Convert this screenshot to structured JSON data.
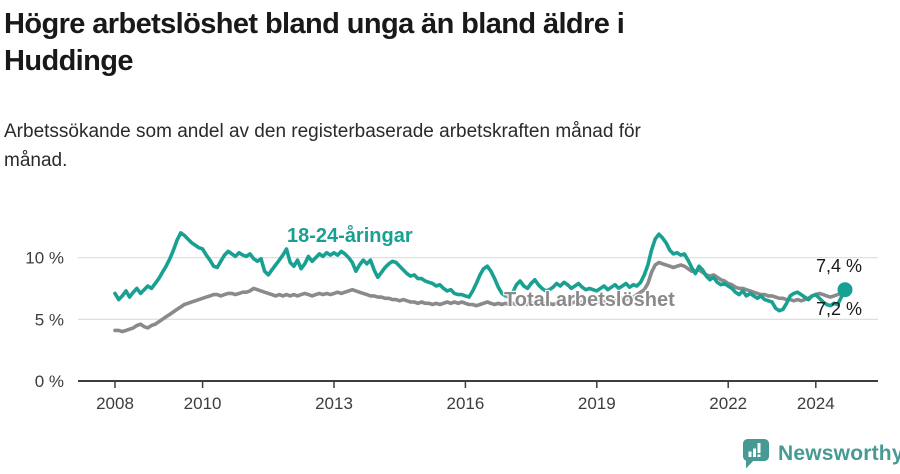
{
  "header": {
    "title": "Högre arbetslöshet bland unga än bland äldre i Huddinge",
    "title_line1": "Högre arbetslöshet bland unga än bland äldre i",
    "title_line2": "Huddinge",
    "subtitle": "Arbetssökande som andel av den registerbaserade arbetskraften månad för månad.",
    "subtitle_line1": "Arbetssökande som andel av den registerbaserade arbetskraften månad för",
    "subtitle_line2": "månad."
  },
  "chart_data": {
    "type": "line",
    "title": "Högre arbetslöshet bland unga än bland äldre i Huddinge",
    "subtitle": "Arbetssökande som andel av den registerbaserade arbetskraften månad för månad.",
    "x_start_year": 2008,
    "x_end_label": "2024",
    "points_frequency": "monthly",
    "x_ticks": [
      2008,
      2010,
      2013,
      2016,
      2019,
      2022,
      2024
    ],
    "y_ticks": [
      {
        "value": 0,
        "label": "0 %"
      },
      {
        "value": 5,
        "label": "5 %"
      },
      {
        "value": 10,
        "label": "10 %"
      }
    ],
    "ylim": [
      0,
      12.8
    ],
    "grid": "horizontal-only",
    "legend_position": "inline-labels",
    "colors": {
      "teal": "#18a192",
      "gray": "#8a8a8a",
      "axis": "#3d3d3d",
      "grid": "#e0e0e0",
      "text_dark": "#1a1a1a",
      "logo": "#479a94"
    },
    "end_labels": [
      "7,4 %",
      "7,2 %"
    ],
    "series": [
      {
        "id": "young",
        "name": "18-24-åringar",
        "color": "#18a192",
        "end_value": 7.4,
        "values": [
          7.1,
          6.6,
          6.9,
          7.3,
          6.8,
          7.2,
          7.5,
          7.1,
          7.4,
          7.7,
          7.5,
          7.9,
          8.3,
          8.8,
          9.3,
          9.9,
          10.6,
          11.4,
          12.0,
          11.8,
          11.5,
          11.2,
          11.0,
          10.8,
          10.7,
          10.2,
          9.8,
          9.3,
          9.2,
          9.7,
          10.2,
          10.5,
          10.3,
          10.1,
          10.4,
          10.2,
          10.1,
          10.3,
          9.9,
          9.7,
          9.9,
          8.9,
          8.6,
          9.0,
          9.4,
          9.8,
          10.2,
          10.7,
          9.6,
          9.3,
          9.8,
          9.1,
          9.5,
          10.1,
          9.7,
          10.0,
          10.3,
          10.1,
          10.4,
          10.2,
          10.4,
          10.2,
          10.5,
          10.3,
          10.0,
          9.6,
          8.9,
          9.4,
          9.8,
          9.5,
          9.8,
          9.0,
          8.4,
          8.8,
          9.2,
          9.5,
          9.7,
          9.6,
          9.3,
          9.0,
          8.7,
          8.5,
          8.6,
          8.3,
          8.3,
          8.1,
          8.0,
          7.9,
          7.7,
          7.8,
          7.5,
          7.3,
          7.4,
          7.1,
          7.0,
          7.0,
          6.9,
          6.8,
          7.3,
          7.9,
          8.6,
          9.1,
          9.3,
          8.9,
          8.3,
          7.6,
          7.1,
          6.9,
          6.8,
          7.2,
          7.8,
          8.1,
          7.7,
          7.5,
          7.9,
          8.2,
          7.8,
          7.5,
          7.3,
          7.4,
          7.6,
          7.9,
          7.7,
          8.0,
          7.8,
          7.5,
          7.7,
          7.9,
          7.6,
          7.4,
          7.5,
          7.4,
          7.3,
          7.5,
          7.7,
          7.4,
          7.6,
          7.8,
          7.5,
          7.7,
          7.9,
          7.6,
          7.8,
          7.7,
          8.0,
          8.6,
          9.4,
          10.6,
          11.5,
          11.9,
          11.6,
          11.2,
          10.6,
          10.3,
          10.4,
          10.2,
          10.3,
          9.8,
          9.2,
          8.7,
          9.3,
          9.0,
          8.5,
          8.2,
          8.4,
          8.0,
          7.8,
          7.9,
          7.7,
          7.5,
          7.2,
          7.0,
          7.3,
          6.9,
          7.1,
          6.9,
          6.7,
          6.9,
          6.6,
          6.5,
          6.4,
          5.9,
          5.7,
          5.8,
          6.3,
          6.9,
          7.1,
          7.2,
          7.0,
          6.8,
          6.6,
          6.9,
          7.0,
          6.7,
          6.4,
          6.2,
          6.1,
          6.3,
          6.2,
          6.8,
          7.4
        ]
      },
      {
        "id": "total",
        "name": "Total arbetslöshet",
        "color": "#8a8a8a",
        "end_value": 7.2,
        "values": [
          4.1,
          4.1,
          4.0,
          4.1,
          4.2,
          4.3,
          4.5,
          4.6,
          4.4,
          4.3,
          4.5,
          4.6,
          4.8,
          5.0,
          5.2,
          5.4,
          5.6,
          5.8,
          6.0,
          6.2,
          6.3,
          6.4,
          6.5,
          6.6,
          6.7,
          6.8,
          6.9,
          7.0,
          7.0,
          6.9,
          7.0,
          7.1,
          7.1,
          7.0,
          7.1,
          7.2,
          7.2,
          7.3,
          7.5,
          7.4,
          7.3,
          7.2,
          7.1,
          7.0,
          6.9,
          7.0,
          6.9,
          7.0,
          6.9,
          7.0,
          6.9,
          7.0,
          7.1,
          7.0,
          6.9,
          7.0,
          7.1,
          7.0,
          7.1,
          7.0,
          7.1,
          7.2,
          7.1,
          7.2,
          7.3,
          7.4,
          7.3,
          7.2,
          7.1,
          7.0,
          6.9,
          6.9,
          6.8,
          6.8,
          6.7,
          6.7,
          6.6,
          6.6,
          6.5,
          6.6,
          6.5,
          6.4,
          6.4,
          6.3,
          6.4,
          6.3,
          6.3,
          6.2,
          6.3,
          6.2,
          6.3,
          6.4,
          6.3,
          6.4,
          6.3,
          6.4,
          6.3,
          6.2,
          6.2,
          6.1,
          6.2,
          6.3,
          6.4,
          6.3,
          6.2,
          6.3,
          6.2,
          6.3,
          6.2,
          6.3,
          6.2,
          6.2,
          6.3,
          6.2,
          6.3,
          6.4,
          6.3,
          6.2,
          6.3,
          6.3,
          6.2,
          6.3,
          6.2,
          6.3,
          6.2,
          6.3,
          6.4,
          6.3,
          6.4,
          6.3,
          6.4,
          6.4,
          6.4,
          6.5,
          6.4,
          6.5,
          6.6,
          6.5,
          6.6,
          6.7,
          6.6,
          6.7,
          6.8,
          7.0,
          7.2,
          7.4,
          7.9,
          8.8,
          9.4,
          9.6,
          9.5,
          9.4,
          9.3,
          9.2,
          9.3,
          9.4,
          9.3,
          9.1,
          8.9,
          8.9,
          9.0,
          8.8,
          8.6,
          8.5,
          8.6,
          8.4,
          8.2,
          8.1,
          7.9,
          7.8,
          7.6,
          7.5,
          7.5,
          7.4,
          7.3,
          7.2,
          7.1,
          7.0,
          7.0,
          6.9,
          6.9,
          6.8,
          6.7,
          6.7,
          6.6,
          6.6,
          6.5,
          6.6,
          6.5,
          6.6,
          6.7,
          6.9,
          7.0,
          7.1,
          7.0,
          6.9,
          6.8,
          6.9,
          7.0,
          7.1,
          7.2
        ]
      }
    ]
  },
  "footer": {
    "brand": "Newsworthy"
  }
}
